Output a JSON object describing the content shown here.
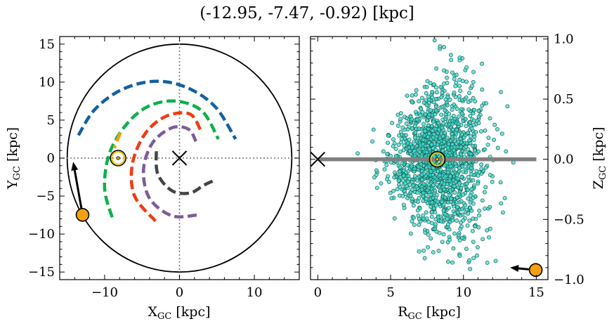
{
  "title": "(-12.95, -7.47, -0.92) [kpc]",
  "colors": {
    "arm_blue": "#1560a0",
    "arm_green": "#0db04b",
    "arm_orange": "#f5a000",
    "arm_red": "#ee3c12",
    "arm_purple": "#7d5b9a",
    "arm_dark": "#444444",
    "marker_orange": "#f5a010",
    "scatter_fill": "#40e0d0",
    "scatter_edge": "#1a5e58",
    "midplane": "#808080"
  },
  "chart_data": [
    {
      "type": "line",
      "panel": "xy",
      "xlabel": "X",
      "xlabel_sub": "GC",
      "xlabel_unit": " [kpc]",
      "ylabel": "Y",
      "ylabel_sub": "GC",
      "ylabel_unit": " [kpc]",
      "xlim": [
        -16,
        16
      ],
      "ylim": [
        -16,
        16
      ],
      "xticks": [
        -10,
        0,
        10
      ],
      "xtick_labels": [
        "−10",
        "0",
        "10"
      ],
      "yticks": [
        -15,
        -10,
        -5,
        0,
        5,
        10,
        15
      ],
      "ytick_labels": [
        "−15",
        "−10",
        "−5",
        "0",
        "5",
        "10",
        "15"
      ],
      "boundary_circle_radius": 15,
      "spiral_arms": [
        {
          "color_key": "arm_blue",
          "points": [
            [
              -13.5,
              3.0
            ],
            [
              -11.5,
              6.2
            ],
            [
              -8.5,
              8.6
            ],
            [
              -5,
              9.9
            ],
            [
              -1.5,
              10.0
            ],
            [
              2.0,
              8.8
            ],
            [
              5.0,
              6.5
            ],
            [
              7.5,
              2.5
            ]
          ]
        },
        {
          "color_key": "arm_green",
          "points": [
            [
              -9.0,
              -7.8
            ],
            [
              -10.0,
              -4.0
            ],
            [
              -9.4,
              0.5
            ],
            [
              -7.2,
              4.3
            ],
            [
              -4.2,
              6.8
            ],
            [
              -0.5,
              7.5
            ],
            [
              3.0,
              6.2
            ],
            [
              5.2,
              2.5
            ]
          ]
        },
        {
          "color_key": "arm_orange",
          "points": [
            [
              -7.9,
              3.3
            ],
            [
              -8.3,
              2.4
            ],
            [
              -8.7,
              1.3
            ]
          ]
        },
        {
          "color_key": "arm_red",
          "points": [
            [
              -3.2,
              -8.3
            ],
            [
              -6.0,
              -5.0
            ],
            [
              -6.3,
              -0.8
            ],
            [
              -4.6,
              3.2
            ],
            [
              -1.8,
              5.5
            ],
            [
              1.4,
              5.8
            ],
            [
              2.9,
              3.5
            ]
          ]
        },
        {
          "color_key": "arm_purple",
          "points": [
            [
              2.3,
              -7.5
            ],
            [
              -1.0,
              -7.6
            ],
            [
              -4.0,
              -5.3
            ],
            [
              -4.8,
              -1.5
            ],
            [
              -3.6,
              2.0
            ],
            [
              -1.0,
              4.0
            ],
            [
              1.2,
              3.8
            ],
            [
              2.2,
              2.2
            ]
          ]
        },
        {
          "color_key": "arm_dark",
          "points": [
            [
              -3.1,
              0.9
            ],
            [
              -2.9,
              -2.1
            ],
            [
              -1.0,
              -4.3
            ],
            [
              1.4,
              -4.6
            ],
            [
              3.2,
              -3.6
            ],
            [
              4.5,
              -3.0
            ]
          ]
        }
      ],
      "sun": {
        "x": -8.2,
        "y": 0.0
      },
      "galactic_center": {
        "x": 0,
        "y": 0
      },
      "object": {
        "x": -12.95,
        "y": -7.47
      },
      "velocity_arrow_tip": {
        "x": -14.2,
        "y": -0.5
      }
    },
    {
      "type": "scatter",
      "panel": "rz",
      "xlabel": "R",
      "xlabel_sub": "GC",
      "xlabel_unit": " [kpc]",
      "ylabel": "Z",
      "ylabel_sub": "GC",
      "ylabel_unit": " [kpc]",
      "xlim": [
        -0.5,
        15.8
      ],
      "ylim": [
        -1.0,
        1.02
      ],
      "xticks": [
        0,
        5,
        10,
        15
      ],
      "xtick_labels": [
        "0",
        "5",
        "10",
        "15"
      ],
      "yticks": [
        -1.0,
        -0.5,
        0.0,
        0.5,
        1.0
      ],
      "ytick_labels": [
        "−1.0",
        "−0.5",
        "0.0",
        "0.5",
        "1.0"
      ],
      "midplane_line": {
        "x_from": 0,
        "x_to": 15,
        "z": 0
      },
      "sun": {
        "x": 8.2,
        "y": 0.0
      },
      "galactic_center": {
        "x": 0,
        "y": 0
      },
      "object": {
        "x": 14.96,
        "y": -0.92
      },
      "velocity_arrow_tip": {
        "x": 13.2,
        "y": -0.9
      },
      "cloud": {
        "n": 1500,
        "r_center": 8.3,
        "r_sigma": 1.6,
        "z_sigma_base": 0.07,
        "z_sigma_slope": 0.045
      }
    }
  ]
}
